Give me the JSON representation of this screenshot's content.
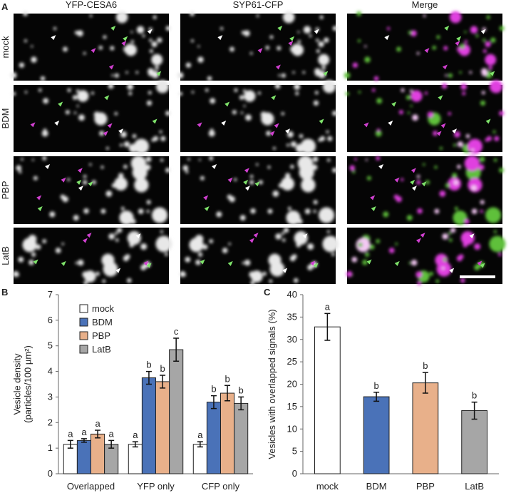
{
  "figure": {
    "panel_letters": [
      "A",
      "B",
      "C"
    ],
    "columns": [
      {
        "label": "YFP-CESA6",
        "color": "#7fe36b"
      },
      {
        "label": "SYP61-CFP",
        "color": "#e04fe0"
      },
      {
        "label": "Merge",
        "color": "#555555"
      }
    ],
    "rows": [
      "mock",
      "BDM",
      "PBP",
      "LatB"
    ]
  },
  "chart_data": [
    {
      "type": "bar",
      "ylabel": [
        "Vesicle density",
        "(particles/100 µm²)"
      ],
      "categories": [
        "Overlapped",
        "YFP only",
        "CFP only"
      ],
      "series": [
        {
          "name": "mock",
          "color": "#ffffff",
          "values": [
            1.15,
            1.15,
            1.15
          ],
          "errors": [
            0.15,
            0.1,
            0.1
          ],
          "letters": [
            "a",
            "a",
            "a"
          ]
        },
        {
          "name": "BDM",
          "color": "#4a72b8",
          "values": [
            1.3,
            3.75,
            2.8
          ],
          "errors": [
            0.07,
            0.25,
            0.25
          ],
          "letters": [
            "a",
            "b",
            "b"
          ]
        },
        {
          "name": "PBP",
          "color": "#e8b08a",
          "values": [
            1.55,
            3.6,
            3.15
          ],
          "errors": [
            0.15,
            0.25,
            0.3
          ],
          "letters": [
            "a",
            "b",
            "b"
          ]
        },
        {
          "name": "LatB",
          "color": "#a6a6a6",
          "values": [
            1.15,
            4.85,
            2.75
          ],
          "errors": [
            0.15,
            0.45,
            0.25
          ],
          "letters": [
            "a",
            "c",
            "b"
          ]
        }
      ],
      "ylim": [
        0,
        7
      ],
      "yticks": [
        0,
        1,
        2,
        3,
        4,
        5,
        6,
        7
      ],
      "legend": "upper-left"
    },
    {
      "type": "bar",
      "ylabel": [
        "Vesicles with overlapped signals (%)"
      ],
      "categories": [
        "mock",
        "BDM",
        "PBP",
        "LatB"
      ],
      "values": [
        32.8,
        17.2,
        20.3,
        14.1
      ],
      "errors": [
        3,
        1,
        2.3,
        1.9
      ],
      "letters": [
        "a",
        "b",
        "b",
        "b"
      ],
      "colors": [
        "#ffffff",
        "#4a72b8",
        "#e8b08a",
        "#a6a6a6"
      ],
      "ylim": [
        0,
        40
      ],
      "yticks": [
        0,
        5,
        10,
        15,
        20,
        25,
        30,
        35,
        40
      ]
    }
  ]
}
